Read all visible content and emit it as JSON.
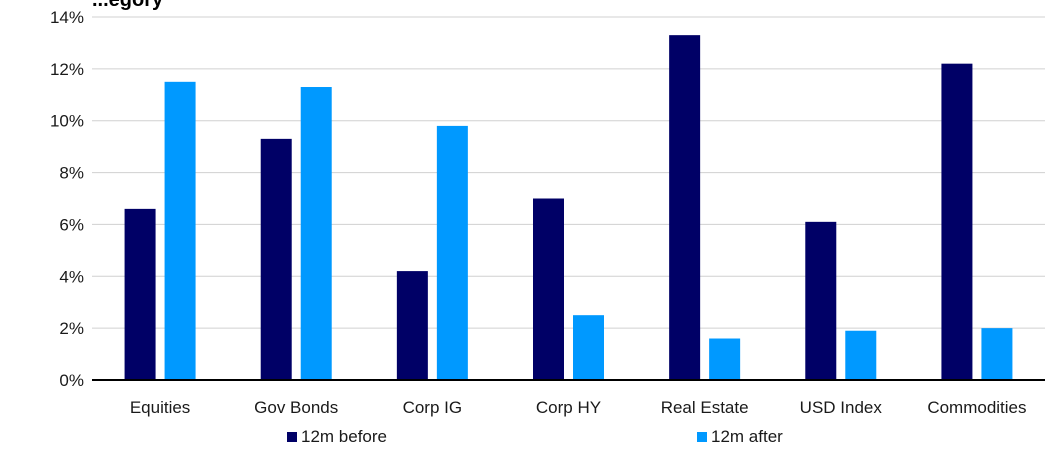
{
  "chart_data": {
    "type": "bar",
    "title": "",
    "title_visible_fragment": "...egory",
    "xlabel": "",
    "ylabel": "",
    "categories": [
      "Equities",
      "Gov Bonds",
      "Corp IG",
      "Corp HY",
      "Real Estate",
      "USD Index",
      "Commodities"
    ],
    "series": [
      {
        "name": "12m before",
        "color": "#000066",
        "values": [
          6.6,
          9.3,
          4.2,
          7.0,
          13.3,
          6.1,
          12.2
        ]
      },
      {
        "name": "12m after",
        "color": "#0099ff",
        "values": [
          11.5,
          11.3,
          9.8,
          2.5,
          1.6,
          1.9,
          2.0
        ]
      }
    ],
    "ylim": [
      0,
      14
    ],
    "yticks": [
      0,
      2,
      4,
      6,
      8,
      10,
      12,
      14
    ],
    "ytick_format": "percent",
    "ytick_labels": [
      "0%",
      "2%",
      "4%",
      "6%",
      "8%",
      "10%",
      "12%",
      "14%"
    ],
    "grid": {
      "horizontal": true,
      "vertical": false,
      "color": "#d0d0d0"
    },
    "legend": {
      "placement": "bottom"
    }
  }
}
